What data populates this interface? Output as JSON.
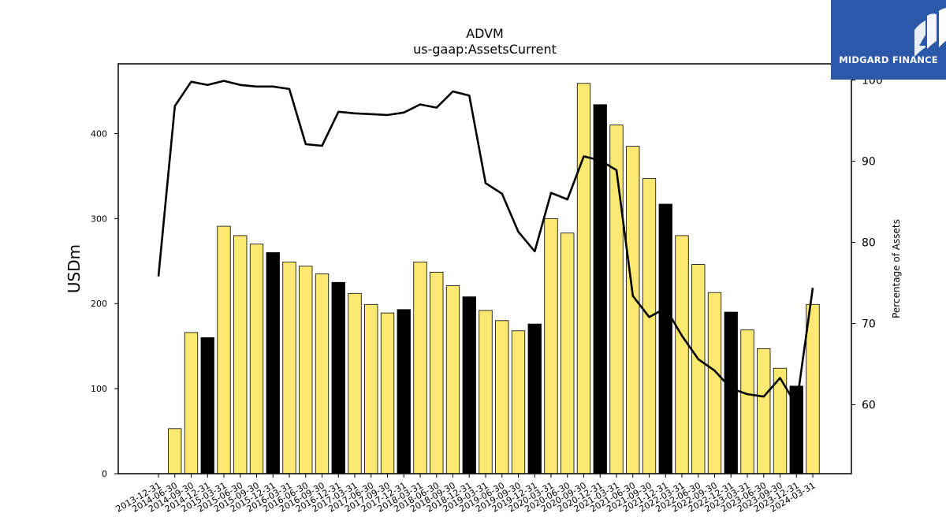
{
  "chart_data": {
    "type": "bar",
    "title": "ADVM",
    "subtitle": "us-gaap:AssetsCurrent",
    "ylabel": "USDm",
    "y2label": "Percentage of Assets",
    "ylim": [
      0,
      482
    ],
    "y2lim": [
      51.5,
      102
    ],
    "yticks": [
      0,
      100,
      200,
      300,
      400
    ],
    "y2ticks": [
      60,
      70,
      80,
      90,
      100
    ],
    "categories": [
      "2013-12-31",
      "2014-06-30",
      "2014-09-30",
      "2014-12-31",
      "2015-03-31",
      "2015-06-30",
      "2015-09-30",
      "2015-12-31",
      "2016-03-31",
      "2016-06-30",
      "2016-09-30",
      "2016-12-31",
      "2017-03-31",
      "2017-06-30",
      "2017-09-30",
      "2017-12-31",
      "2018-03-31",
      "2018-06-30",
      "2018-09-30",
      "2018-12-31",
      "2019-03-31",
      "2019-06-30",
      "2019-09-30",
      "2019-12-31",
      "2020-03-31",
      "2020-06-30",
      "2020-09-30",
      "2020-12-31",
      "2021-03-31",
      "2021-06-30",
      "2021-09-30",
      "2021-12-31",
      "2022-03-31",
      "2022-06-30",
      "2022-09-30",
      "2022-12-31",
      "2023-03-31",
      "2023-06-30",
      "2023-09-30",
      "2023-12-31",
      "2024-03-31"
    ],
    "series": [
      {
        "kind": "bar",
        "values": [
          null,
          53,
          166,
          160,
          291,
          280,
          270,
          260,
          249,
          244,
          235,
          225,
          212,
          199,
          189,
          193,
          249,
          237,
          221,
          208,
          192,
          180,
          168,
          176,
          300,
          283,
          459,
          434,
          410,
          385,
          347,
          317,
          280,
          246,
          213,
          190,
          169,
          147,
          124,
          103,
          199
        ],
        "fiscal_year_end": [
          false,
          false,
          false,
          true,
          false,
          false,
          false,
          true,
          false,
          false,
          false,
          true,
          false,
          false,
          false,
          true,
          false,
          false,
          false,
          true,
          false,
          false,
          false,
          true,
          false,
          false,
          false,
          true,
          false,
          false,
          false,
          true,
          false,
          false,
          false,
          true,
          false,
          false,
          false,
          true,
          false
        ],
        "color": "#fbe972",
        "year_end_color": "#000000"
      },
      {
        "kind": "line",
        "axis": "right",
        "values": [
          75.8,
          96.8,
          99.8,
          99.4,
          99.9,
          99.4,
          99.2,
          99.2,
          98.9,
          92.1,
          91.9,
          96.1,
          95.9,
          95.8,
          95.7,
          96.0,
          97.0,
          96.6,
          98.6,
          98.1,
          87.3,
          86.0,
          81.3,
          78.9,
          86.1,
          85.3,
          90.6,
          90.1,
          88.9,
          73.4,
          70.8,
          71.9,
          68.5,
          65.6,
          64.2,
          62.0,
          61.3,
          61.0,
          63.3,
          59.9,
          74.4
        ],
        "color": "#000000"
      }
    ]
  },
  "branding": {
    "logo_text": "MIDGARD FINANCE",
    "logo_color": "#2c58a9"
  }
}
